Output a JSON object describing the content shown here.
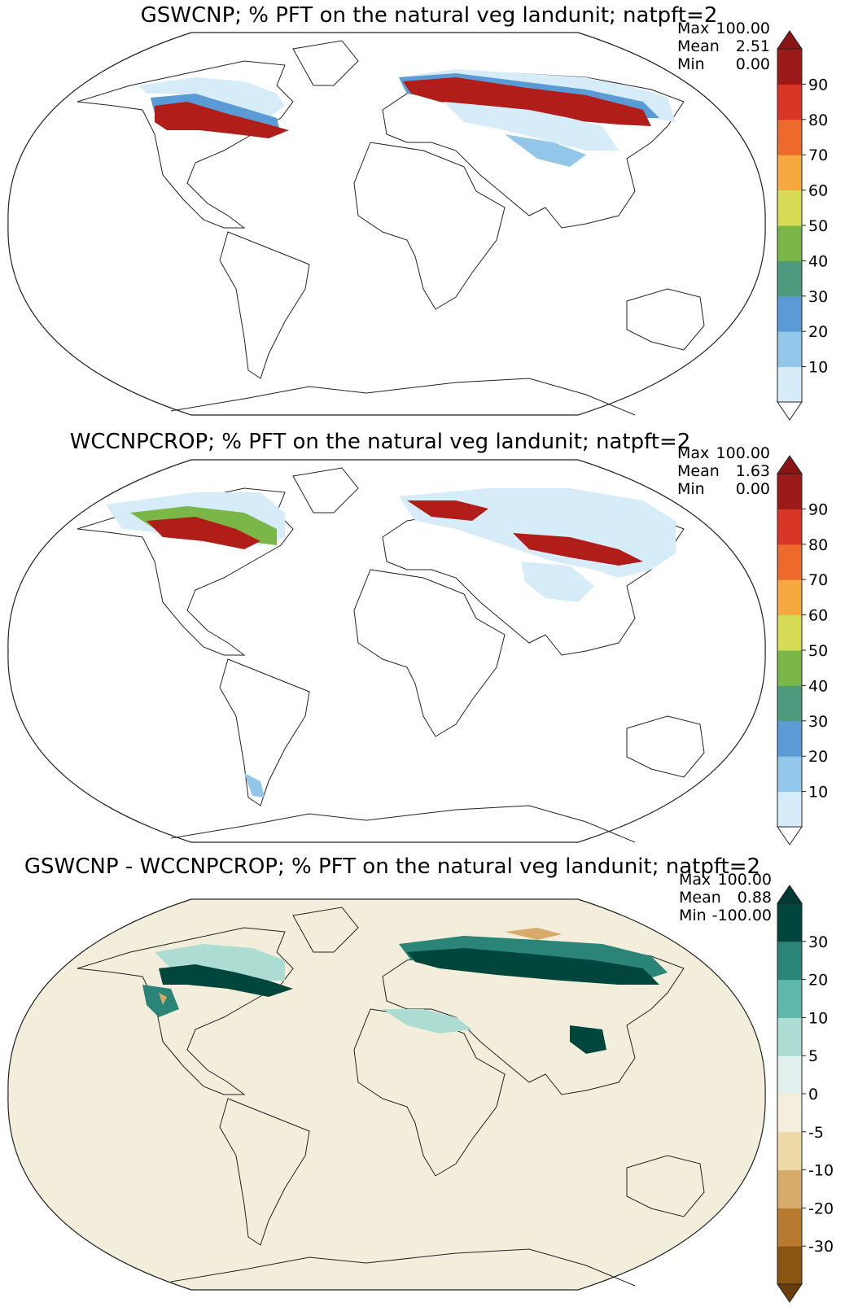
{
  "panels": [
    {
      "title": "GSWCNP; % PFT on the natural veg landunit; natpft=2",
      "stats": {
        "max_label": "Max",
        "max": "100.00",
        "mean_label": "Mean",
        "mean": "2.51",
        "min_label": "Min",
        "min": "0.00"
      },
      "colorbar": {
        "ticks": [
          "10",
          "20",
          "30",
          "40",
          "50",
          "60",
          "70",
          "80",
          "90"
        ],
        "colors": [
          "#d6ecf8",
          "#92c7ea",
          "#5b9bd5",
          "#4e9a7f",
          "#7ab648",
          "#d6dc55",
          "#f5a940",
          "#ee6a2c",
          "#da3628",
          "#9c1a1a"
        ],
        "extend_low": "#ffffff",
        "extend_high": "#8b1515"
      }
    },
    {
      "title": "WCCNPCROP; % PFT on the natural veg landunit; natpft=2",
      "stats": {
        "max_label": "Max",
        "max": "100.00",
        "mean_label": "Mean",
        "mean": "1.63",
        "min_label": "Min",
        "min": "0.00"
      },
      "colorbar": {
        "ticks": [
          "10",
          "20",
          "30",
          "40",
          "50",
          "60",
          "70",
          "80",
          "90"
        ],
        "colors": [
          "#d6ecf8",
          "#92c7ea",
          "#5b9bd5",
          "#4e9a7f",
          "#7ab648",
          "#d6dc55",
          "#f5a940",
          "#ee6a2c",
          "#da3628",
          "#9c1a1a"
        ],
        "extend_low": "#ffffff",
        "extend_high": "#8b1515"
      }
    },
    {
      "title": "GSWCNP - WCCNPCROP; % PFT on the natural veg landunit; natpft=2",
      "stats": {
        "max_label": "Max",
        "max": "100.00",
        "mean_label": "Mean",
        "mean": "0.88",
        "min_label": "Min",
        "min": "-100.00"
      },
      "colorbar": {
        "ticks": [
          "-30",
          "-20",
          "-10",
          "-5",
          "0",
          "5",
          "10",
          "20",
          "30"
        ],
        "colors": [
          "#8a5412",
          "#b87a2e",
          "#d7ac6a",
          "#ecd9a6",
          "#f4efdc",
          "#e2f0ee",
          "#acdcd2",
          "#5eb7a8",
          "#2a8478",
          "#01463d"
        ],
        "extend_low": "#6b3d0b",
        "extend_high": "#013a32"
      }
    }
  ],
  "colors": {
    "ocean_diff": "#f3eedb",
    "coast": "#222222",
    "boreal_high": "#b11d19",
    "boreal_mid": "#ee6a2c",
    "boreal_low": "#5b9bd5",
    "boreal_pale": "#d6ecf8",
    "diff_pos": "#01463d",
    "diff_mid": "#2a8478",
    "diff_light": "#acdcd2",
    "diff_neg": "#d7ac6a"
  }
}
